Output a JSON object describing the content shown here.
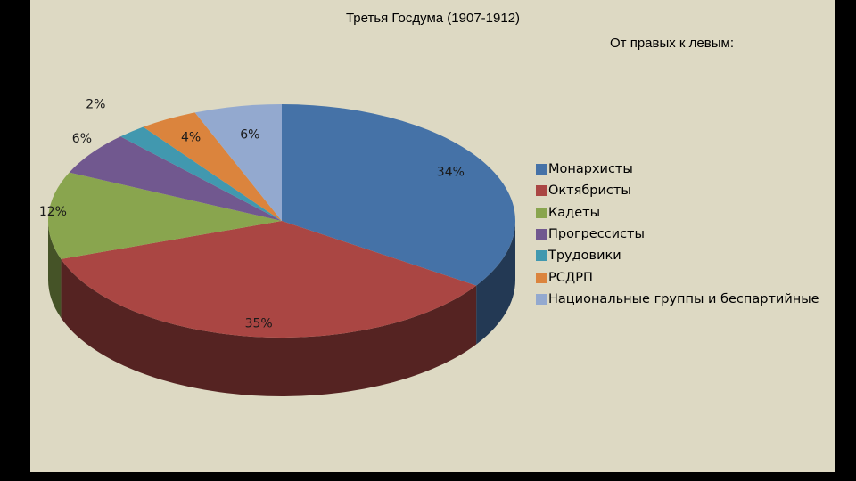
{
  "title": "Третья Госдума (1907-1912)",
  "subtitle": "От правых к левым:",
  "chart_data": {
    "type": "pie",
    "style": "3d",
    "categories": [
      "Монархисты",
      "Октябристы",
      "Кадеты",
      "Прогрессисты",
      "Трудовики",
      "РСДРП",
      "Национальные группы и беспартийные"
    ],
    "values": [
      34,
      35,
      12,
      6,
      2,
      4,
      6
    ],
    "labels": [
      "34%",
      "35%",
      "12%",
      "6%",
      "2%",
      "4%",
      "6%"
    ],
    "colors": [
      "#4572a7",
      "#aa4643",
      "#89a54e",
      "#71588f",
      "#4198af",
      "#db843d",
      "#93a9cf"
    ],
    "legend_position": "right"
  }
}
